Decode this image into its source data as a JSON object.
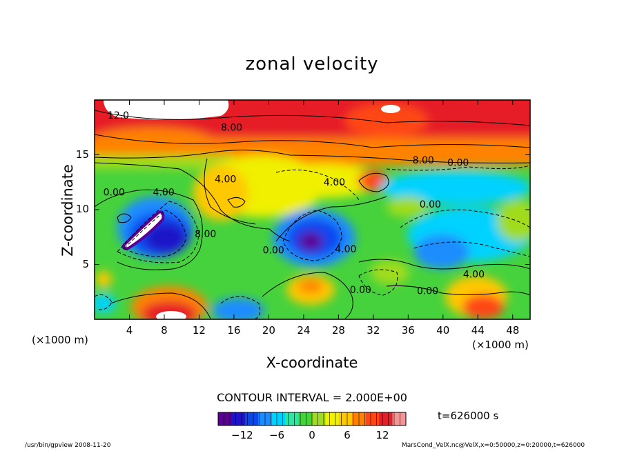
{
  "chart_data": {
    "type": "heatmap",
    "title": "zonal velocity",
    "xlabel": "X-coordinate",
    "ylabel": "Z-coordinate",
    "x_unit_label": "(×1000 m)",
    "xlim": [
      0,
      50
    ],
    "ylim": [
      0,
      20
    ],
    "x_ticks": [
      "4",
      "8",
      "12",
      "16",
      "20",
      "24",
      "28",
      "32",
      "36",
      "40",
      "44",
      "48"
    ],
    "y_ticks": [
      "5",
      "10",
      "15"
    ],
    "contour_interval_text": "CONTOUR INTERVAL = 2.000E+00",
    "colorbar": {
      "range": [
        -16,
        16
      ],
      "ticks": [
        "−12",
        "−6",
        "0",
        "6",
        "12"
      ],
      "colors": [
        "#5a0096",
        "#1e14c8",
        "#0a46f0",
        "#1e8cff",
        "#00d2ff",
        "#2ee6a0",
        "#46d23c",
        "#a0dc1e",
        "#f0f000",
        "#ffc800",
        "#ff8200",
        "#ff4614",
        "#e61e28",
        "#f09696"
      ]
    },
    "contour_labels": [
      {
        "text": "12.0",
        "x": 1.5,
        "z": 18.3
      },
      {
        "text": "8.00",
        "x": 14.5,
        "z": 17.2
      },
      {
        "text": "8.00",
        "x": 36.5,
        "z": 14.2
      },
      {
        "text": "0.00",
        "x": 40.5,
        "z": 14.0
      },
      {
        "text": "4.00",
        "x": 26.3,
        "z": 12.2
      },
      {
        "text": "4.00",
        "x": 13.8,
        "z": 12.5
      },
      {
        "text": "0.00",
        "x": 1.0,
        "z": 11.3
      },
      {
        "text": "4.00",
        "x": 6.7,
        "z": 11.3
      },
      {
        "text": "0.00",
        "x": 37.3,
        "z": 10.2
      },
      {
        "text": "8.00",
        "x": 11.5,
        "z": 7.5
      },
      {
        "text": "0.00",
        "x": 19.3,
        "z": 6.0
      },
      {
        "text": "4.00",
        "x": 27.6,
        "z": 6.1
      },
      {
        "text": "4.00",
        "x": 42.3,
        "z": 3.8
      },
      {
        "text": "0.00",
        "x": 37.0,
        "z": 2.3
      },
      {
        "text": "0.00",
        "x": 29.3,
        "z": 2.4
      }
    ]
  },
  "time_label": "t=626000 s",
  "footer": {
    "left": "/usr/bin/gpview   2008-11-20",
    "right": "MarsCond_VelX.nc@VelX,x=0:50000,z=0:20000,t=626000"
  }
}
